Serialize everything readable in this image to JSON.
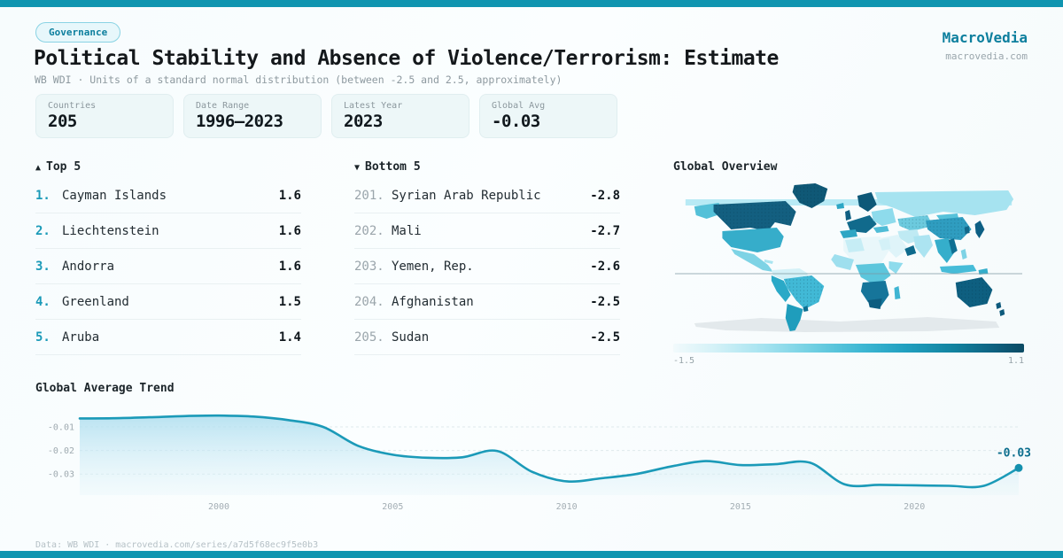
{
  "theme": {
    "accent": "#1095b0",
    "accent_dark": "#0d7f9e",
    "line_color": "#1b9ab8",
    "card_bg": "#edf7f8",
    "badge_border": "#8ad3e4",
    "grid_color": "#dde9ec"
  },
  "header": {
    "badge": "Governance",
    "title": "Political Stability and Absence of Violence/Terrorism: Estimate",
    "subtitle": "WB WDI · Units of a standard normal distribution (between -2.5 and 2.5, approximately)",
    "brand_name": "MacroVedia",
    "brand_domain": "macrovedia.com"
  },
  "stats": [
    {
      "label": "Countries",
      "value": "205"
    },
    {
      "label": "Date Range",
      "value": "1996—2023"
    },
    {
      "label": "Latest Year",
      "value": "2023"
    },
    {
      "label": "Global Avg",
      "value": "-0.03"
    }
  ],
  "rankings": {
    "top": {
      "marker": "▲",
      "title": "Top 5",
      "items": [
        {
          "rank": "1.",
          "name": "Cayman Islands",
          "value": "1.6"
        },
        {
          "rank": "2.",
          "name": "Liechtenstein",
          "value": "1.6"
        },
        {
          "rank": "3.",
          "name": "Andorra",
          "value": "1.6"
        },
        {
          "rank": "4.",
          "name": "Greenland",
          "value": "1.5"
        },
        {
          "rank": "5.",
          "name": "Aruba",
          "value": "1.4"
        }
      ]
    },
    "bottom": {
      "marker": "▼",
      "title": "Bottom 5",
      "items": [
        {
          "rank": "201.",
          "name": "Syrian Arab Republic",
          "value": "-2.8"
        },
        {
          "rank": "202.",
          "name": "Mali",
          "value": "-2.7"
        },
        {
          "rank": "203.",
          "name": "Yemen, Rep.",
          "value": "-2.6"
        },
        {
          "rank": "204.",
          "name": "Afghanistan",
          "value": "-2.5"
        },
        {
          "rank": "205.",
          "name": "Sudan",
          "value": "-2.5"
        }
      ]
    }
  },
  "map": {
    "title": "Global Overview",
    "legend_min": "-1.5",
    "legend_max": "1.1"
  },
  "trend": {
    "title": "Global Average Trend"
  },
  "footer": {
    "text": "Data: WB WDI · macrovedia.com/series/a7d5f68ec9f5e0b3"
  },
  "chart_data": [
    {
      "type": "line",
      "title": "Global Average Trend",
      "x": [
        1996,
        1997,
        1998,
        1999,
        2000,
        2001,
        2002,
        2003,
        2004,
        2005,
        2006,
        2007,
        2008,
        2009,
        2010,
        2011,
        2012,
        2013,
        2014,
        2015,
        2016,
        2017,
        2018,
        2019,
        2020,
        2021,
        2022,
        2023
      ],
      "values": [
        -0.0064,
        -0.0063,
        -0.0059,
        -0.0054,
        -0.0052,
        -0.0056,
        -0.0071,
        -0.01,
        -0.018,
        -0.0218,
        -0.0231,
        -0.0229,
        -0.0202,
        -0.029,
        -0.0331,
        -0.0318,
        -0.03,
        -0.0268,
        -0.0245,
        -0.0262,
        -0.0258,
        -0.0252,
        -0.0344,
        -0.0346,
        -0.0348,
        -0.035,
        -0.035,
        -0.0274
      ],
      "xticks": [
        2000,
        2005,
        2010,
        2015,
        2020
      ],
      "yticks": [
        -0.01,
        -0.02,
        -0.03
      ],
      "ylim": [
        -0.0385,
        -0.004
      ],
      "end_label": "-0.03",
      "xlabel": "",
      "ylabel": "",
      "grid": "horizontal-dashed",
      "legend_position": "none"
    },
    {
      "type": "heatmap",
      "subtype": "world-choropleth",
      "title": "Global Overview",
      "colorbar": {
        "min": -1.5,
        "max": 1.1
      },
      "note": "country values of Political Stability estimate, light cyan = low (-1.5) to dark teal = high (1.1)"
    }
  ]
}
